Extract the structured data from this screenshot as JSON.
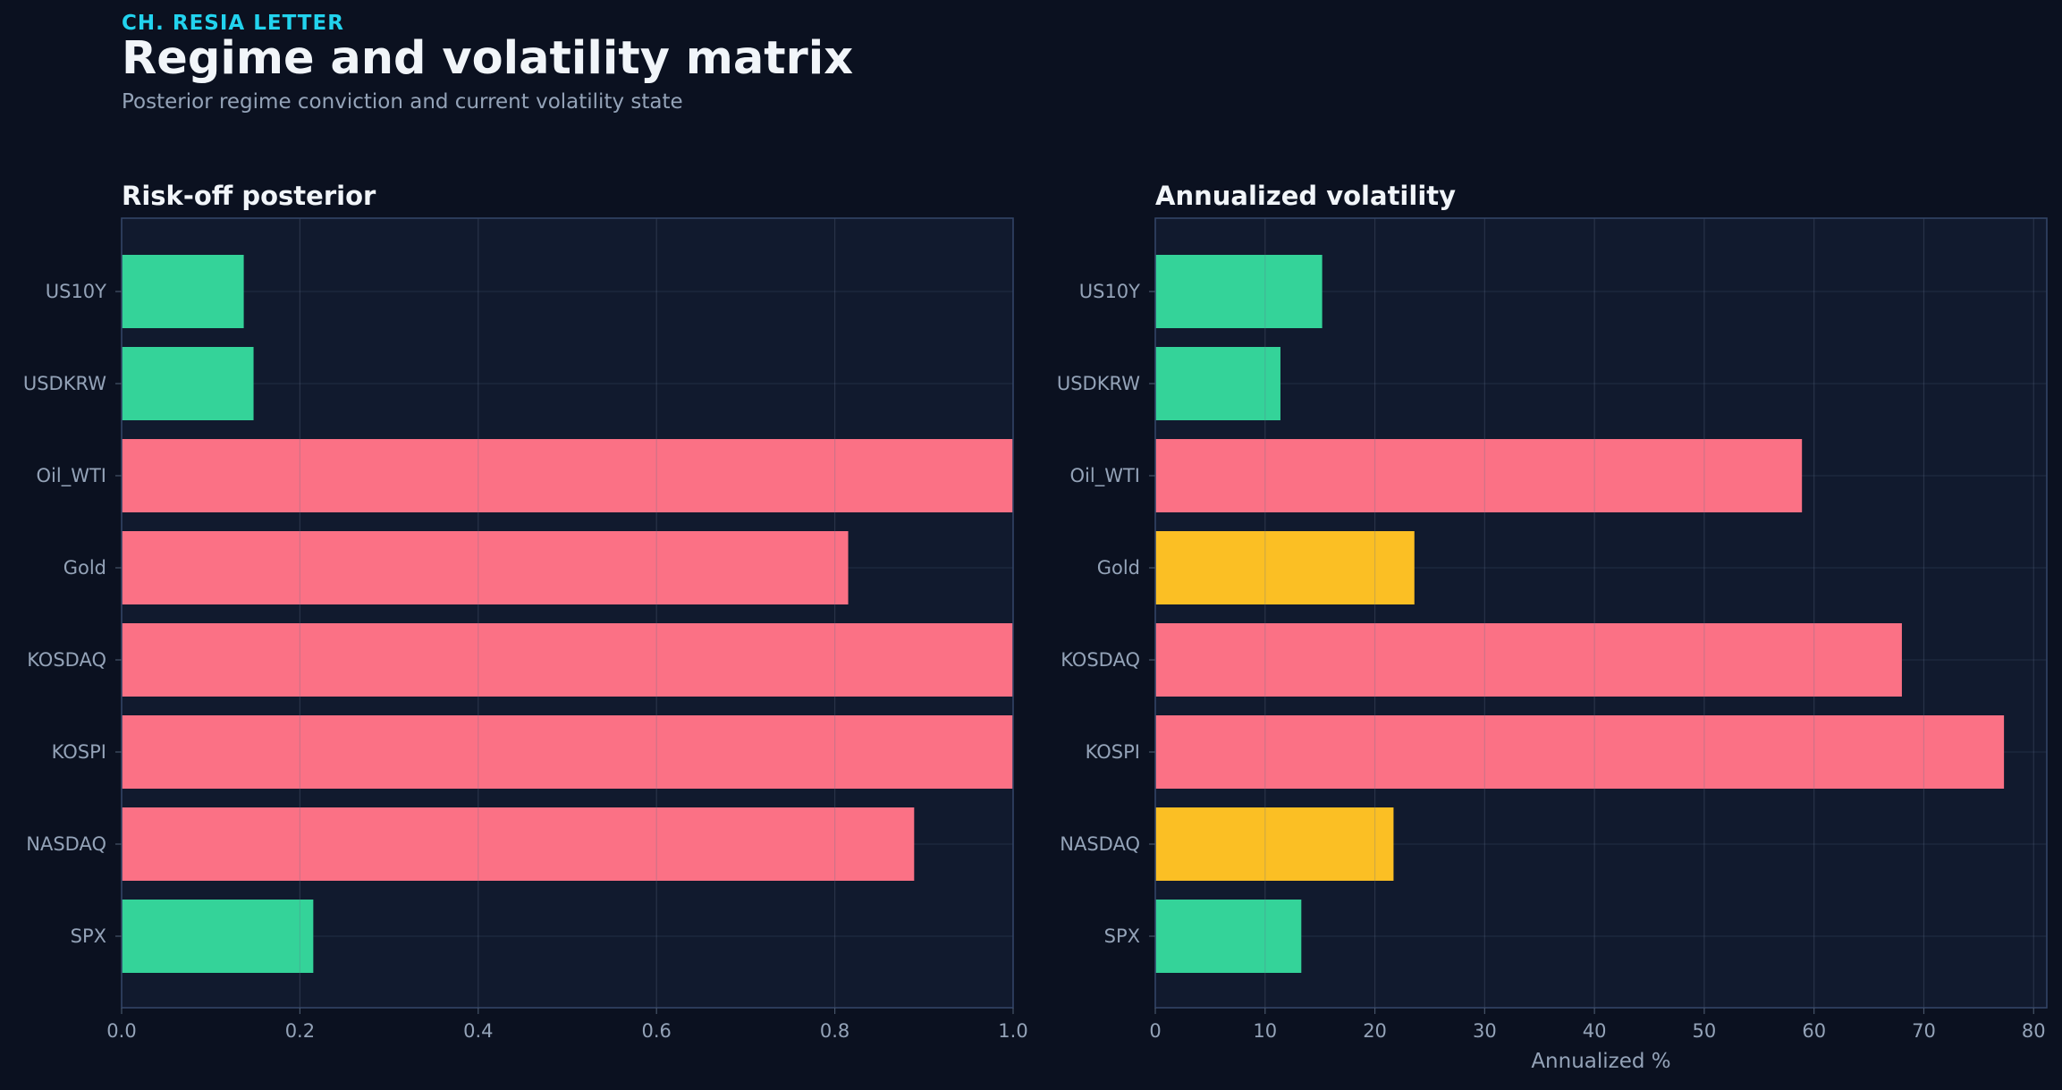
{
  "header": {
    "kicker": "CH. RESIA LETTER",
    "title": "Regime and volatility matrix",
    "subtitle": "Posterior regime conviction and current volatility state"
  },
  "colors": {
    "background": "#0b1120",
    "panel": "#111a2e",
    "low": "#34d399",
    "mid": "#fbbf24",
    "high": "#fb7185",
    "kicker": "#22d3ee"
  },
  "chart_data": [
    {
      "type": "bar",
      "orientation": "horizontal",
      "title": "Risk-off posterior",
      "xlabel": "",
      "categories": [
        "US10Y",
        "USDKRW",
        "Oil_WTI",
        "Gold",
        "KOSDAQ",
        "KOSPI",
        "NASDAQ",
        "SPX"
      ],
      "values": [
        0.137,
        0.148,
        1.0,
        0.815,
        1.0,
        1.0,
        0.889,
        0.215
      ],
      "bar_colors": [
        "low",
        "low",
        "high",
        "high",
        "high",
        "high",
        "high",
        "low"
      ],
      "xlim": [
        0,
        1.0
      ],
      "xticks": [
        0.0,
        0.2,
        0.4,
        0.6,
        0.8,
        1.0
      ],
      "xtick_labels": [
        "0.0",
        "0.2",
        "0.4",
        "0.6",
        "0.8",
        "1.0"
      ],
      "grid": true
    },
    {
      "type": "bar",
      "orientation": "horizontal",
      "title": "Annualized volatility",
      "xlabel": "Annualized %",
      "categories": [
        "US10Y",
        "USDKRW",
        "Oil_WTI",
        "Gold",
        "KOSDAQ",
        "KOSPI",
        "NASDAQ",
        "SPX"
      ],
      "values": [
        15.2,
        11.4,
        58.9,
        23.6,
        68.0,
        77.3,
        21.7,
        13.3
      ],
      "bar_colors": [
        "low",
        "low",
        "high",
        "mid",
        "high",
        "high",
        "mid",
        "low"
      ],
      "xlim": [
        0,
        81.2
      ],
      "xticks": [
        0,
        10,
        20,
        30,
        40,
        50,
        60,
        70,
        80
      ],
      "xtick_labels": [
        "0",
        "10",
        "20",
        "30",
        "40",
        "50",
        "60",
        "70",
        "80"
      ],
      "grid": true
    }
  ]
}
